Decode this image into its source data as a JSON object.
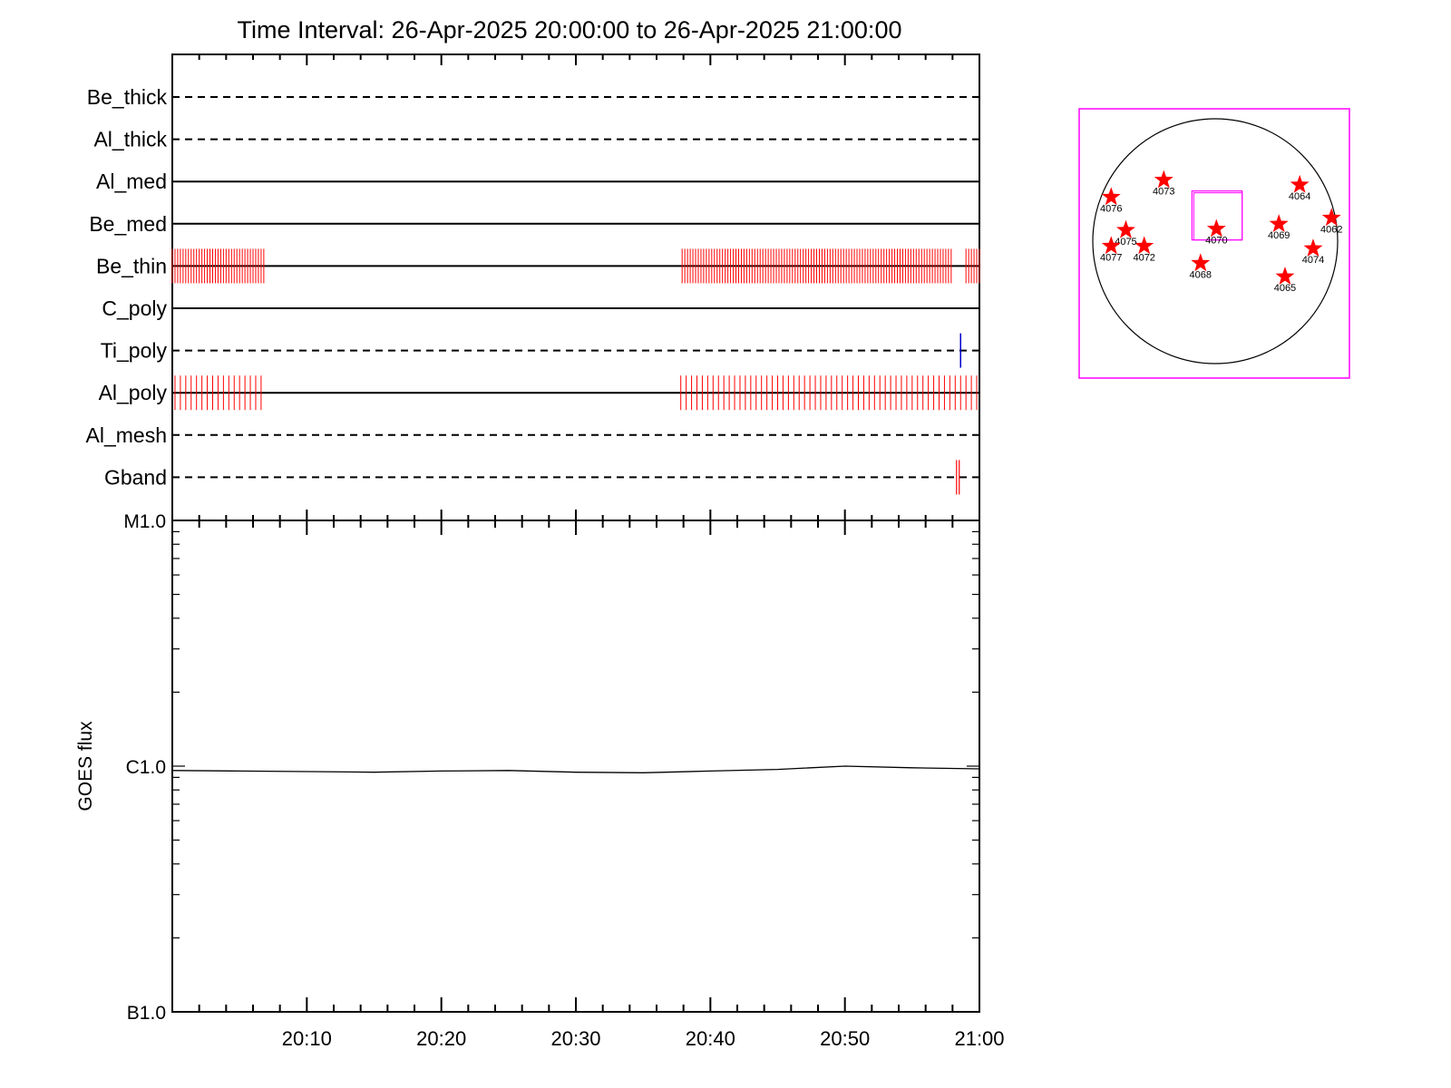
{
  "title": "Time Interval: 26-Apr-2025 20:00:00 to 26-Apr-2025 21:00:00",
  "colors": {
    "axes": "#000000",
    "data_markers": "#ff0000",
    "ti_marker": "#0000cc",
    "fov_box": "#ff00ff",
    "stars": "#ff0000"
  },
  "chart_data": [
    {
      "type": "timeline",
      "title": "Time Interval: 26-Apr-2025 20:00:00 to 26-Apr-2025 21:00:00",
      "xlim": [
        "20:00",
        "21:00"
      ],
      "filters": [
        {
          "name": "Be_thick",
          "line": "dashed",
          "intervals": []
        },
        {
          "name": "Al_thick",
          "line": "dashed",
          "intervals": []
        },
        {
          "name": "Al_med",
          "line": "solid",
          "intervals": []
        },
        {
          "name": "Be_med",
          "line": "solid",
          "intervals": []
        },
        {
          "name": "Be_thin",
          "line": "solid",
          "mark_spacing_min": 0.2,
          "intervals": [
            [
              "20:00",
              "20:06.8"
            ],
            [
              "20:37.9",
              "20:58.0"
            ],
            [
              "20:59.0",
              "21:00"
            ]
          ]
        },
        {
          "name": "C_poly",
          "line": "solid",
          "intervals": []
        },
        {
          "name": "Ti_poly",
          "line": "dashed",
          "marks_blue": [
            "20:58.6"
          ],
          "intervals": []
        },
        {
          "name": "Al_poly",
          "line": "solid",
          "mark_spacing_min": 0.4,
          "intervals": [
            [
              "20:00.2",
              "20:06.7"
            ],
            [
              "20:37.8",
              "21:00"
            ]
          ]
        },
        {
          "name": "Al_mesh",
          "line": "dashed",
          "intervals": []
        },
        {
          "name": "Gband",
          "line": "dashed",
          "marks": [
            "20:58.3",
            "20:58.5"
          ],
          "intervals": []
        }
      ]
    },
    {
      "type": "line",
      "ylabel": "GOES flux",
      "yscale": "log",
      "ylim": [
        1e-07,
        1e-05
      ],
      "yticks": [
        {
          "value": 1e-05,
          "label": "M1.0"
        },
        {
          "value": 1e-06,
          "label": "C1.0"
        },
        {
          "value": 1e-07,
          "label": "B1.0"
        }
      ],
      "xlim": [
        "20:00",
        "21:00"
      ],
      "xticks": [
        "20:10",
        "20:20",
        "20:30",
        "20:40",
        "20:50",
        "21:00"
      ],
      "series": [
        {
          "x": [
            "20:00",
            "20:05",
            "20:10",
            "20:15",
            "20:20",
            "20:25",
            "20:30",
            "20:35",
            "20:40",
            "20:45",
            "20:50",
            "20:55",
            "21:00"
          ],
          "y": [
            9.6e-07,
            9.55e-07,
            9.5e-07,
            9.45e-07,
            9.55e-07,
            9.6e-07,
            9.45e-07,
            9.4e-07,
            9.55e-07,
            9.7e-07,
            1e-06,
            9.85e-07,
            9.75e-07
          ]
        }
      ]
    },
    {
      "type": "scatter",
      "description_free": true,
      "xlim": [
        -1,
        1
      ],
      "ylim": [
        -1,
        1
      ],
      "fov_box": {
        "x": [
          -0.19,
          0.22
        ],
        "y": [
          0.01,
          0.41
        ]
      },
      "points": [
        {
          "label": "4062",
          "x": 0.95,
          "y": 0.19
        },
        {
          "label": "4064",
          "x": 0.69,
          "y": 0.46
        },
        {
          "label": "4065",
          "x": 0.57,
          "y": -0.29
        },
        {
          "label": "4068",
          "x": -0.12,
          "y": -0.18
        },
        {
          "label": "4069",
          "x": 0.52,
          "y": 0.14
        },
        {
          "label": "4070",
          "x": 0.01,
          "y": 0.1
        },
        {
          "label": "4072",
          "x": -0.58,
          "y": -0.04
        },
        {
          "label": "4073",
          "x": -0.42,
          "y": 0.5
        },
        {
          "label": "4074",
          "x": 0.8,
          "y": -0.06
        },
        {
          "label": "4075",
          "x": -0.73,
          "y": 0.09
        },
        {
          "label": "4076",
          "x": -0.85,
          "y": 0.36
        },
        {
          "label": "4077",
          "x": -0.85,
          "y": -0.04
        }
      ]
    }
  ]
}
